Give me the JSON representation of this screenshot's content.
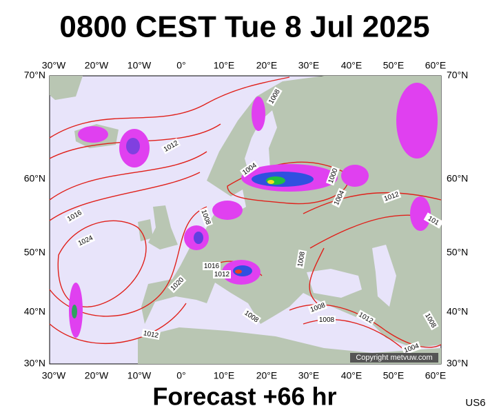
{
  "title": "0800 CEST Tue 8 Jul 2025",
  "map": {
    "longitude_labels": [
      "30°W",
      "20°W",
      "10°W",
      "0°",
      "10°E",
      "20°E",
      "30°E",
      "40°E",
      "50°E",
      "60°E"
    ],
    "latitude_labels": [
      "70°N",
      "60°N",
      "50°N",
      "40°N",
      "30°N"
    ],
    "isobar_labels": [
      "1008",
      "1012",
      "1004",
      "1000",
      "1004",
      "1012",
      "1016",
      "1008",
      "1024",
      "1016",
      "1012",
      "1008",
      "1020",
      "1008",
      "1008",
      "1008",
      "1012",
      "1012",
      "1004",
      "1008",
      "101"
    ]
  },
  "copyright": "Copyright metvuw.com",
  "footer": "Forecast +66 hr",
  "code": "US6"
}
